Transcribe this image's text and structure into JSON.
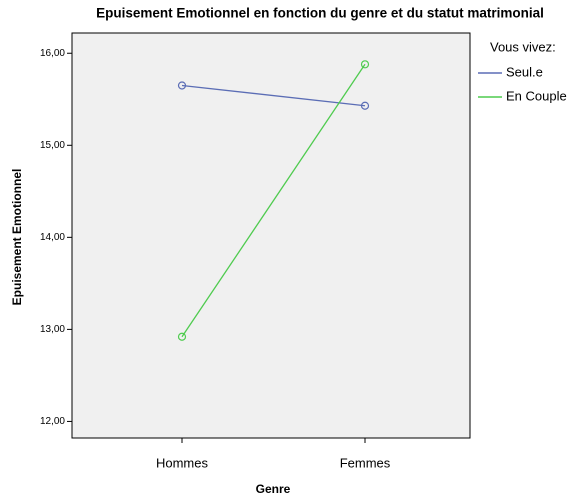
{
  "chart_data": {
    "type": "line",
    "title": "Epuisement Emotionnel en fonction du genre et du statut matrimonial",
    "x_label": "Genre",
    "y_label": "Epuisement Emotionnel",
    "legend_title": "Vous vivez:",
    "legend": "right",
    "categories": [
      "Hommes",
      "Femmes"
    ],
    "series": [
      {
        "name": "Seul.e",
        "color": "#5b6db5",
        "values": [
          15.65,
          15.43
        ]
      },
      {
        "name": "En Couple",
        "color": "#4fcb4f",
        "values": [
          12.92,
          15.88
        ]
      }
    ],
    "ylim": [
      11.82,
      16.22
    ],
    "yticks": [
      {
        "value": 12,
        "label": "12,00"
      },
      {
        "value": 13,
        "label": "13,00"
      },
      {
        "value": 14,
        "label": "14,00"
      },
      {
        "value": 15,
        "label": "15,00"
      },
      {
        "value": 16,
        "label": "16,00"
      }
    ]
  }
}
